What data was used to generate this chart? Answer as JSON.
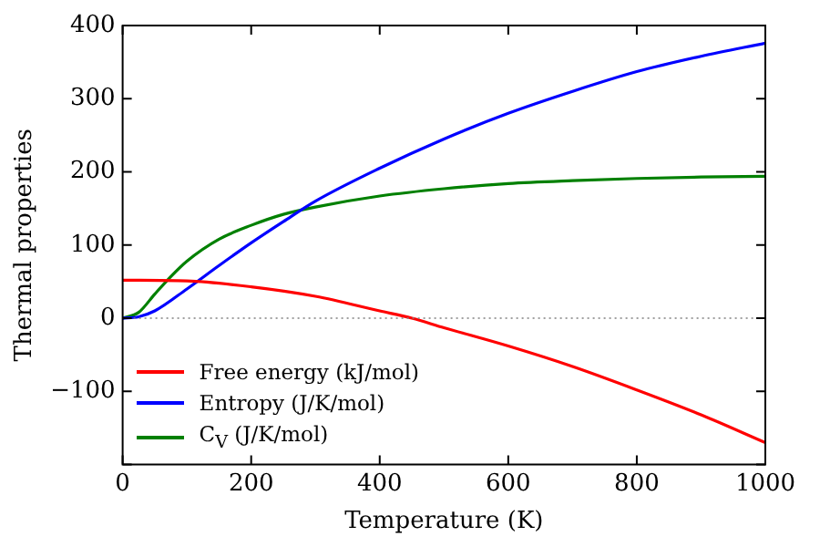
{
  "chart_data": {
    "type": "line",
    "xlabel": "Temperature (K)",
    "ylabel": "Thermal properties",
    "xlim": [
      0,
      1000
    ],
    "xticks": [
      0,
      200,
      400,
      600,
      800,
      1000
    ],
    "ylim": [
      -200,
      400
    ],
    "yticks": [
      {
        "value": -200,
        "label": null
      },
      -100,
      0,
      100,
      200,
      300,
      400
    ],
    "legend": "bottom left",
    "marker": "none",
    "line_style": "solid",
    "ref_lines": [
      {
        "axis": "y",
        "value": 0,
        "color": "#808080",
        "line_style": "dotted"
      }
    ],
    "series": [
      {
        "name": "Free energy (kJ/mol)",
        "color": "#ff0000",
        "x": [
          0,
          100,
          200,
          300,
          400,
          450,
          500,
          600,
          700,
          800,
          900,
          1000
        ],
        "values": [
          52,
          51,
          43,
          30,
          10,
          0,
          -13,
          -38,
          -66,
          -98,
          -132,
          -170
        ]
      },
      {
        "name": "Entropy (J/K/mol)",
        "color": "#0000ff",
        "x": [
          0,
          25,
          50,
          100,
          150,
          200,
          250,
          300,
          400,
          500,
          600,
          700,
          800,
          900,
          1000
        ],
        "values": [
          0,
          2,
          10,
          40,
          72,
          103,
          132,
          160,
          205,
          245,
          280,
          310,
          337,
          358,
          376
        ]
      },
      {
        "name": "C$_{V}$ (J/K/mol)",
        "color": "#008000",
        "x": [
          0,
          25,
          50,
          75,
          100,
          150,
          200,
          250,
          300,
          400,
          500,
          600,
          700,
          800,
          900,
          1000
        ],
        "values": [
          0,
          8,
          33,
          57,
          78,
          108,
          127,
          142,
          152,
          167,
          177,
          184,
          188,
          191,
          193,
          194
        ]
      }
    ]
  }
}
